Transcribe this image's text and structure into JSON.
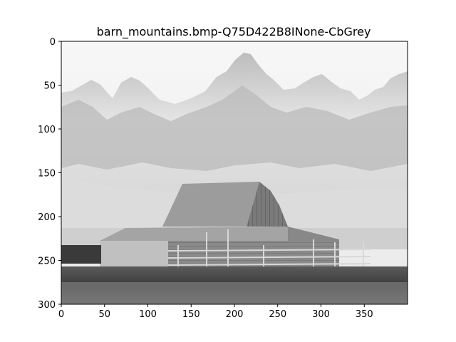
{
  "chart_data": {
    "type": "image",
    "title": "barn_mountains.bmp-Q75D422B8INone-CbGrey",
    "xlabel": "",
    "ylabel": "",
    "xlim": [
      0,
      400
    ],
    "ylim": [
      300,
      0
    ],
    "xticks": [
      0,
      50,
      100,
      150,
      200,
      250,
      300,
      350
    ],
    "yticks": [
      0,
      50,
      100,
      150,
      200,
      250,
      300
    ],
    "grid": false,
    "colormap": "grey",
    "image_content": "greyscale photograph of a wooden barn in front of snow-capped mountain peaks"
  },
  "colors": {
    "sky": "#f2f2f2",
    "mountain": "#d9d9d9",
    "mountain_dark": "#a6a6a6",
    "roof": "#9a9a9a",
    "barn_wall": "#7d7d7d",
    "ground": "#4a4a4a",
    "axis": "#000000"
  }
}
